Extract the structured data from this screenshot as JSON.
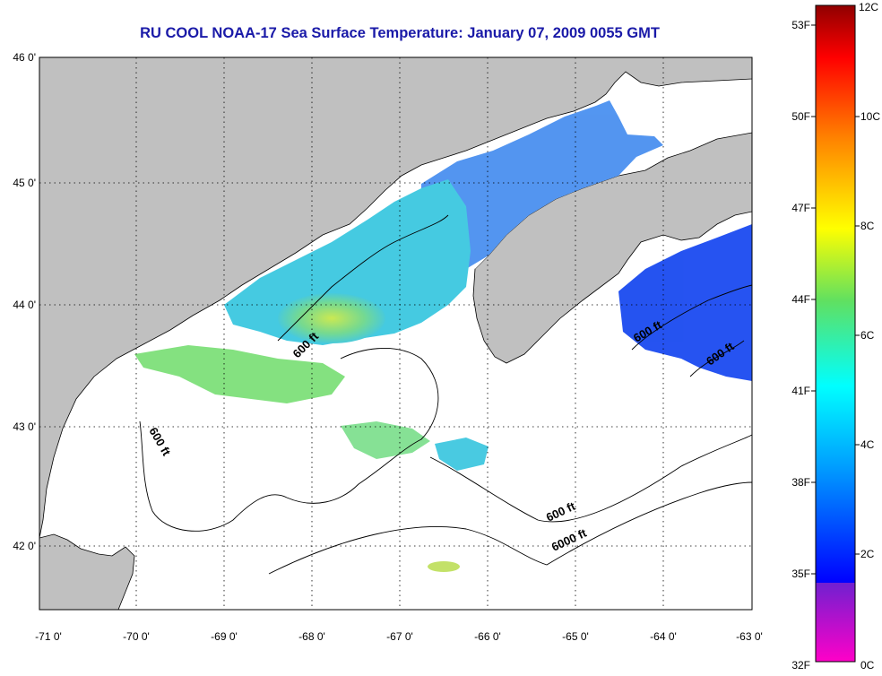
{
  "title": "RU COOL  NOAA-17  Sea Surface Temperature:  January 07, 2009 0055 GMT",
  "lat_labels": [
    "46 0'",
    "45 0'",
    "44 0'",
    "43 0'",
    "42 0'"
  ],
  "lon_labels": [
    "-71 0'",
    "-70 0'",
    "-69 0'",
    "-68 0'",
    "-67 0'",
    "-66 0'",
    "-65 0'",
    "-64 0'",
    "-63 0'"
  ],
  "contours": [
    "600 ft",
    "600 ft",
    "600 ft",
    "600 ft",
    "600 ft",
    "6000 ft"
  ],
  "colorbar": {
    "fahrenheit": [
      "53F",
      "50F",
      "47F",
      "44F",
      "41F",
      "38F",
      "35F",
      "32F"
    ],
    "celsius": [
      "12C",
      "10C",
      "8C",
      "6C",
      "4C",
      "2C",
      "0C"
    ]
  },
  "colors": {
    "land": "#c0c0c0",
    "water_no_data": "#ffffff",
    "title": "#1a1aa8"
  }
}
